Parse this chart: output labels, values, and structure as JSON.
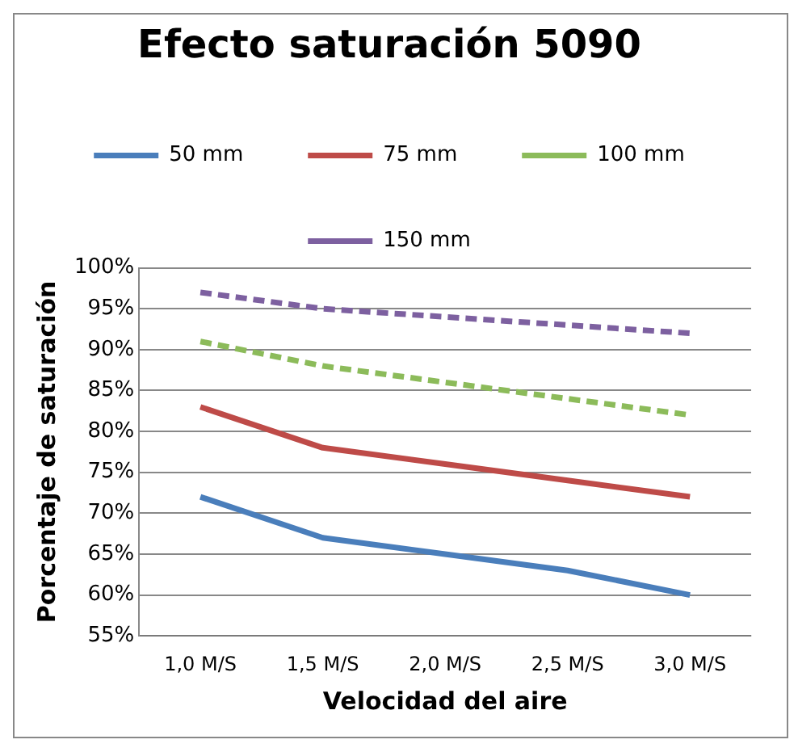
{
  "chart_data": {
    "type": "line",
    "title": "Efecto saturación 5090",
    "xlabel": "Velocidad del aire",
    "ylabel": "Porcentaje de saturación",
    "categories": [
      "1,0 M/S",
      "1,5 M/S",
      "2,0 M/S",
      "2,5 M/S",
      "3,0 M/S"
    ],
    "series": [
      {
        "name": "50 mm",
        "color": "#4a7ebb",
        "values": [
          72,
          67,
          65,
          63,
          60
        ],
        "line_style": "solid"
      },
      {
        "name": "75 mm",
        "color": "#be4b48",
        "values": [
          83,
          78,
          76,
          74,
          72
        ],
        "line_style": "solid"
      },
      {
        "name": "100 mm",
        "color": "#8cbb5a",
        "values": [
          91,
          88,
          86,
          84,
          82
        ],
        "line_style": "dashed"
      },
      {
        "name": "150 mm",
        "color": "#7d60a0",
        "values": [
          97,
          95,
          94,
          93,
          92
        ],
        "line_style": "dashed"
      }
    ],
    "ylim": [
      55,
      100
    ],
    "yticks": [
      {
        "value": 55,
        "label": "55%"
      },
      {
        "value": 60,
        "label": "60%"
      },
      {
        "value": 65,
        "label": "65%"
      },
      {
        "value": 70,
        "label": "70%"
      },
      {
        "value": 75,
        "label": "75%"
      },
      {
        "value": 80,
        "label": "80%"
      },
      {
        "value": 85,
        "label": "85%"
      },
      {
        "value": 90,
        "label": "90%"
      },
      {
        "value": 95,
        "label": "95%"
      },
      {
        "value": 100,
        "label": "100%"
      }
    ],
    "grid": "y",
    "legend": "top",
    "marker": "none"
  }
}
